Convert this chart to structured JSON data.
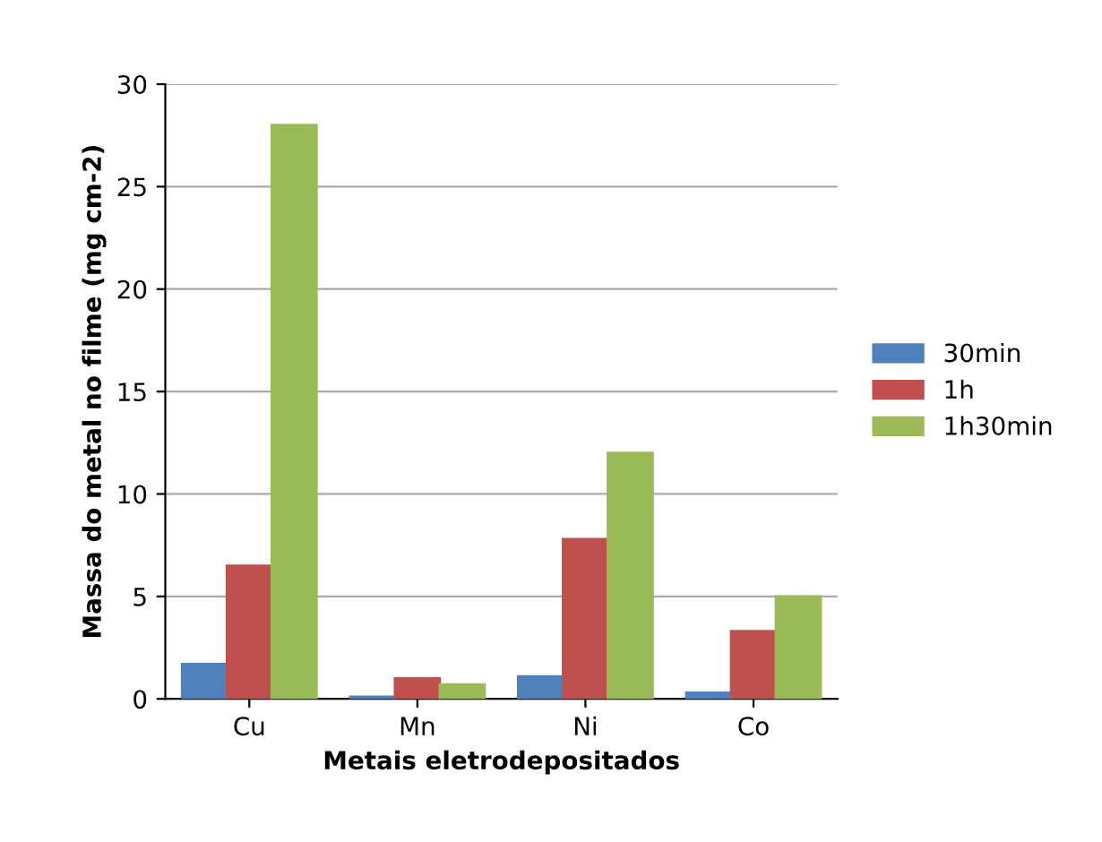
{
  "chart_data": {
    "type": "bar",
    "xlabel": "Metais eletrodepositados",
    "ylabel": "Massa do metal no filme (mg cm-2)",
    "categories": [
      "Cu",
      "Mn",
      "Ni",
      "Co"
    ],
    "series": [
      {
        "name": "30min",
        "color": "#4f81bd",
        "values": [
          1.7,
          0.1,
          1.1,
          0.3
        ]
      },
      {
        "name": "1h",
        "color": "#c0504d",
        "values": [
          6.5,
          1.0,
          7.8,
          3.3
        ]
      },
      {
        "name": "1h30min",
        "color": "#9bbb59",
        "values": [
          28.0,
          0.7,
          12.0,
          5.0
        ]
      }
    ],
    "ylim": [
      0,
      30
    ],
    "yticks": [
      0,
      5,
      10,
      15,
      20,
      25,
      30
    ],
    "grid": "y",
    "legend": "right"
  }
}
